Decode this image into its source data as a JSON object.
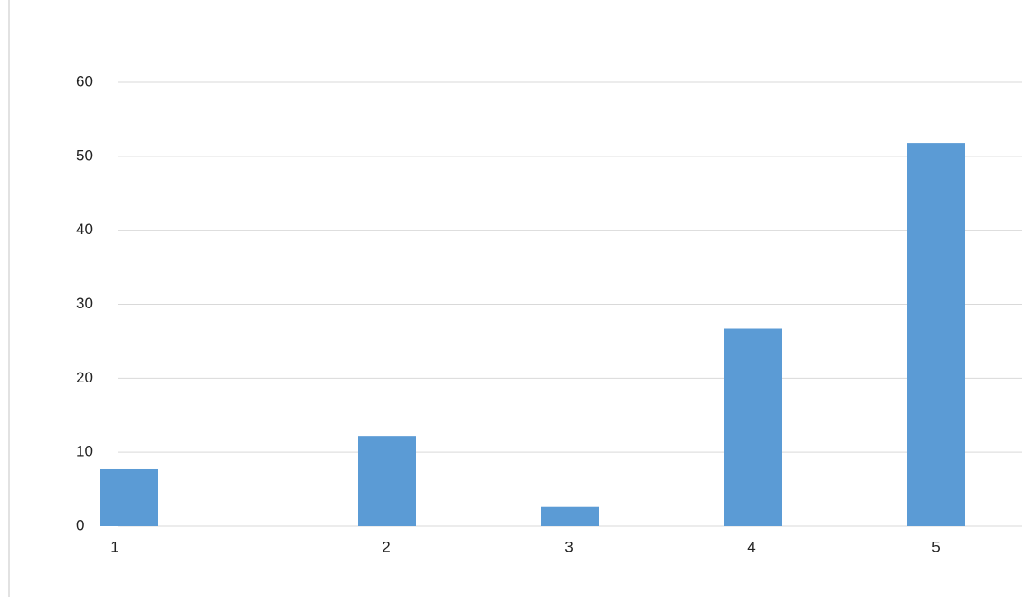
{
  "chart_data": {
    "type": "bar",
    "categories": [
      "1",
      "2",
      "3",
      "4",
      "5"
    ],
    "values": [
      7.7,
      12.2,
      2.6,
      26.7,
      51.8
    ],
    "color": "#5b9bd5",
    "ylim": [
      0,
      60
    ],
    "yticks": [
      0,
      10,
      20,
      30,
      40,
      50,
      60
    ],
    "grid": true
  }
}
